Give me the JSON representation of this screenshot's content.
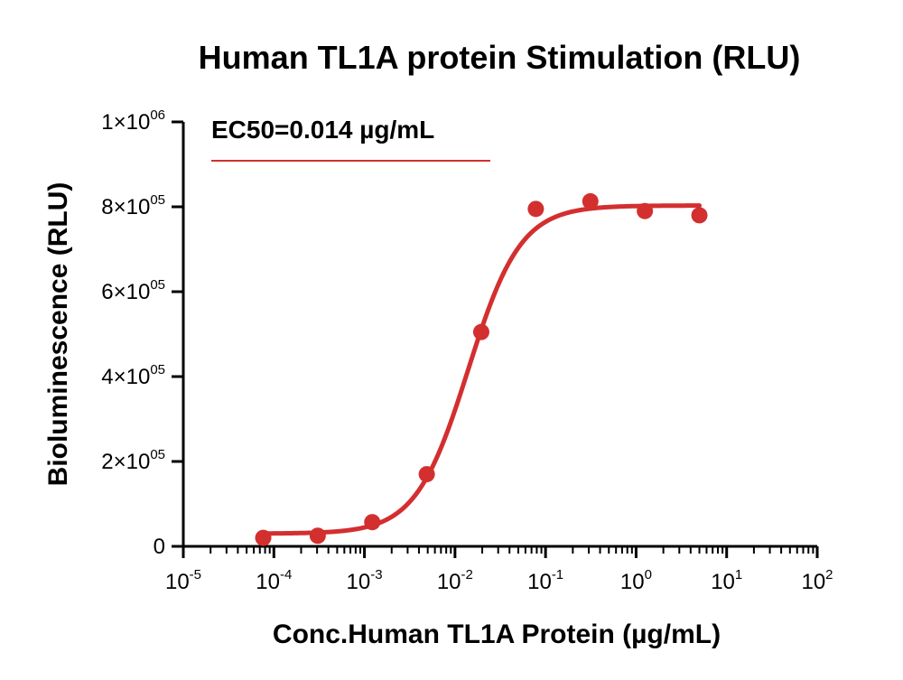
{
  "chart_data": {
    "type": "scatter",
    "title": "Human TL1A protein Stimulation (RLU)",
    "xlabel": "Conc.Human TL1A Protein (µg/mL)",
    "ylabel": "Bioluminescence (RLU)",
    "x_scale": "log",
    "xlim": [
      1e-05,
      100
    ],
    "ylim": [
      0,
      1000000
    ],
    "grid": false,
    "legend": {
      "label": "EC50=0.014 µg/mL",
      "placement": "top-left"
    },
    "x_ticks": [
      {
        "base": "10",
        "exp": "-5"
      },
      {
        "base": "10",
        "exp": "-4"
      },
      {
        "base": "10",
        "exp": "-3"
      },
      {
        "base": "10",
        "exp": "-2"
      },
      {
        "base": "10",
        "exp": "-1"
      },
      {
        "base": "10",
        "exp": "0"
      },
      {
        "base": "10",
        "exp": "1"
      },
      {
        "base": "10",
        "exp": "2"
      }
    ],
    "x_tick_values": [
      1e-05,
      0.0001,
      0.001,
      0.01,
      0.1,
      1,
      10,
      100
    ],
    "y_ticks": [
      {
        "value": 0,
        "mant": "0",
        "exp": ""
      },
      {
        "value": 200000,
        "mant": "2×10",
        "exp": "05"
      },
      {
        "value": 400000,
        "mant": "4×10",
        "exp": "05"
      },
      {
        "value": 600000,
        "mant": "6×10",
        "exp": "05"
      },
      {
        "value": 800000,
        "mant": "8×10",
        "exp": "05"
      },
      {
        "value": 1000000,
        "mant": "1×10",
        "exp": "06"
      }
    ],
    "series": [
      {
        "points": [
          {
            "x": 7.63e-05,
            "y": 20000
          },
          {
            "x": 0.000305,
            "y": 25000
          },
          {
            "x": 0.00122,
            "y": 57000
          },
          {
            "x": 0.00488,
            "y": 170000
          },
          {
            "x": 0.0195,
            "y": 505000
          },
          {
            "x": 0.0781,
            "y": 795000
          },
          {
            "x": 0.3125,
            "y": 813000
          },
          {
            "x": 1.25,
            "y": 790000
          },
          {
            "x": 5,
            "y": 780000
          }
        ],
        "fit": {
          "model": "four-parameter logistic",
          "bottom": 30000,
          "top": 803000,
          "ec50": 0.014,
          "hill": 1.5,
          "x_range": [
            7.63e-05,
            5
          ]
        },
        "color": "#d32f2f"
      }
    ]
  }
}
